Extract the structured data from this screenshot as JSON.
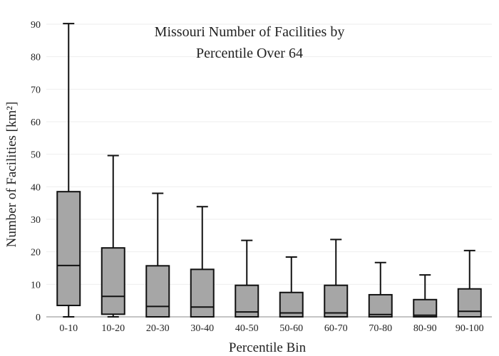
{
  "chart_data": {
    "type": "boxplot",
    "title_lines": [
      "Missouri Number of Facilities by",
      "Percentile Over 64"
    ],
    "xlabel": "Percentile Bin",
    "ylabel": "Number of Facilities  [km²]",
    "ylim": [
      0,
      90
    ],
    "yticks": [
      "0",
      "10",
      "20",
      "30",
      "40",
      "50",
      "60",
      "70",
      "80",
      "90"
    ],
    "grid": true,
    "colors": {
      "box_fill": "#a6a6a6",
      "stroke": "#111111",
      "grid": "#eeeeee",
      "axis": "#888888"
    },
    "categories": [
      "0-10",
      "10-20",
      "20-30",
      "30-40",
      "40-50",
      "50-60",
      "60-70",
      "70-80",
      "80-90",
      "90-100"
    ],
    "boxes": [
      {
        "min": 0,
        "q1": 3.5,
        "median": 15.8,
        "q3": 38.5,
        "max": 90.2
      },
      {
        "min": 0,
        "q1": 0.8,
        "median": 6.3,
        "q3": 21.2,
        "max": 49.6
      },
      {
        "min": 0,
        "q1": 0,
        "median": 3.2,
        "q3": 15.7,
        "max": 38.0
      },
      {
        "min": 0,
        "q1": 0,
        "median": 3.0,
        "q3": 14.6,
        "max": 33.9
      },
      {
        "min": 0,
        "q1": 0,
        "median": 1.5,
        "q3": 9.7,
        "max": 23.5
      },
      {
        "min": 0,
        "q1": 0,
        "median": 1.2,
        "q3": 7.5,
        "max": 18.4
      },
      {
        "min": 0,
        "q1": 0,
        "median": 1.2,
        "q3": 9.7,
        "max": 23.8
      },
      {
        "min": 0,
        "q1": 0,
        "median": 0.7,
        "q3": 6.8,
        "max": 16.7
      },
      {
        "min": 0,
        "q1": 0,
        "median": 0.5,
        "q3": 5.3,
        "max": 12.9
      },
      {
        "min": 0,
        "q1": 0,
        "median": 1.7,
        "q3": 8.6,
        "max": 20.4
      }
    ]
  }
}
